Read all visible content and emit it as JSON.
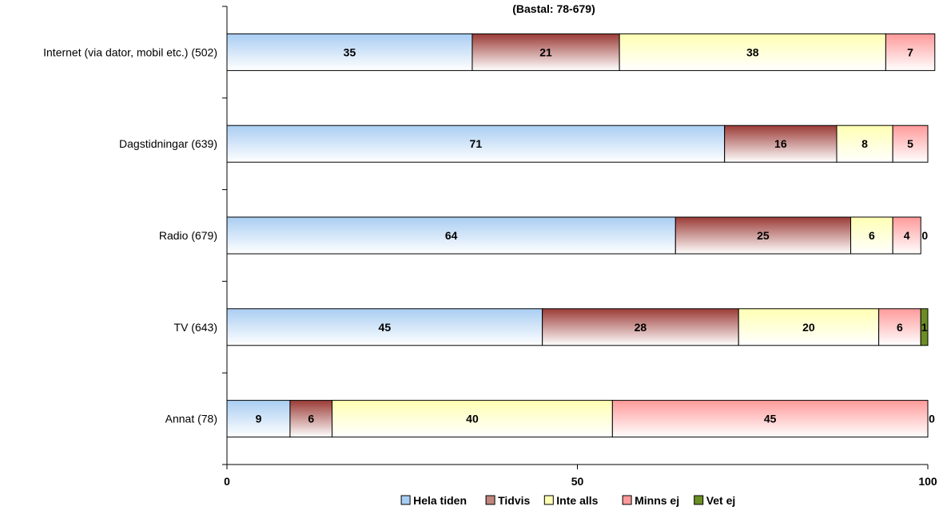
{
  "chart_data": {
    "type": "bar",
    "orientation": "horizontal",
    "stacked": true,
    "title": "(Bastal: 78-679)",
    "categories": [
      "Internet (via dator, mobil etc.) (502)",
      "Dagstidningar (639)",
      "Radio (679)",
      "TV (643)",
      "Annat (78)"
    ],
    "series": [
      {
        "name": "Hela tiden",
        "color": "#a9cdf2",
        "values": [
          35,
          71,
          64,
          45,
          9
        ]
      },
      {
        "name": "Tidvis",
        "color": "#9b3b36",
        "values": [
          21,
          16,
          25,
          28,
          6
        ]
      },
      {
        "name": "Inte alls",
        "color": "#ffffb3",
        "values": [
          38,
          8,
          6,
          20,
          40
        ]
      },
      {
        "name": "Minns ej",
        "color": "#ff9a9a",
        "values": [
          7,
          5,
          4,
          6,
          45
        ]
      },
      {
        "name": "Vet ej",
        "color": "#6b8e23",
        "values": [
          0,
          0,
          0,
          1,
          0
        ]
      }
    ],
    "xlim": [
      0,
      100
    ],
    "xticks": [
      "0",
      "50",
      "100"
    ],
    "grid": false,
    "legend_position": "bottom"
  }
}
